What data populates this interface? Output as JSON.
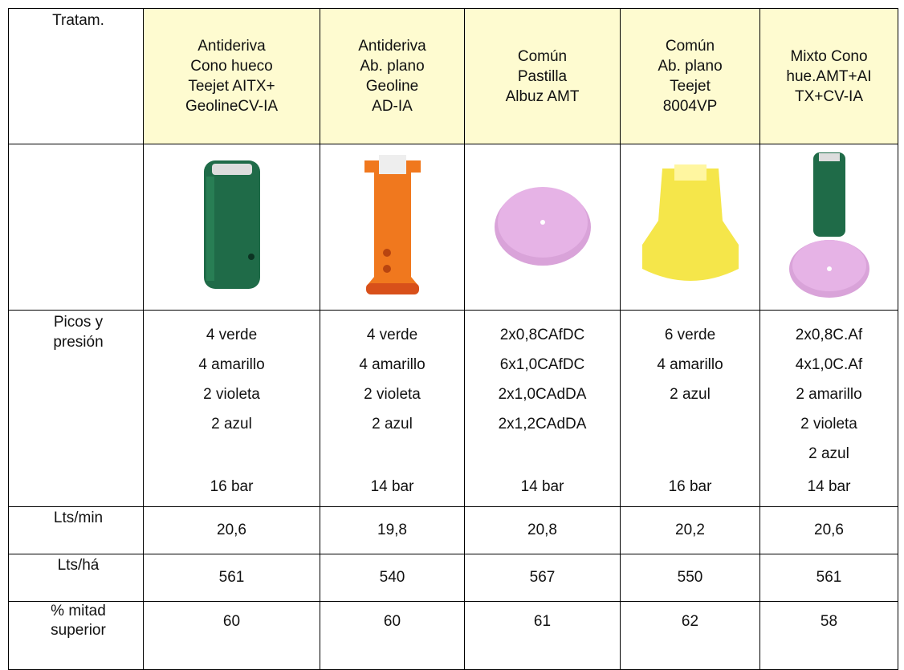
{
  "table": {
    "header": [
      [
        "Tratam."
      ],
      [
        "Antideriva",
        "Cono hueco",
        "Teejet AITX+",
        "GeolineCV-IA"
      ],
      [
        "Antideriva",
        "Ab. plano",
        "Geoline",
        "AD-IA"
      ],
      [
        "Común",
        "Pastilla",
        "Albuz AMT"
      ],
      [
        "Común",
        "Ab. plano",
        "Teejet",
        "8004VP"
      ],
      [
        "Mixto Cono",
        "hue.AMT+AI",
        "TX+CV-IA"
      ]
    ],
    "picos": {
      "label": [
        "Picos y",
        "presión"
      ],
      "cells": [
        {
          "nozzles": [
            "4 verde",
            "4 amarillo",
            "2 violeta",
            "2 azul"
          ],
          "pressure": "16 bar"
        },
        {
          "nozzles": [
            "4 verde",
            "4 amarillo",
            "2 violeta",
            "2 azul"
          ],
          "pressure": "14 bar"
        },
        {
          "nozzles": [
            "2x0,8CAfDC",
            "6x1,0CAfDC",
            "2x1,0CAdDA",
            "2x1,2CAdDA"
          ],
          "pressure": "14 bar"
        },
        {
          "nozzles": [
            "6 verde",
            "4 amarillo",
            "2 azul"
          ],
          "pressure": "16 bar"
        },
        {
          "nozzles": [
            "2x0,8C.Af",
            "4x1,0C.Af",
            "2 amarillo",
            "2 violeta",
            "2 azul"
          ],
          "pressure": "14 bar"
        }
      ]
    },
    "rows": [
      [
        "Lts/min",
        "20,6",
        "19,8",
        "20,8",
        "20,2",
        "20,6"
      ],
      [
        "Lts/há",
        "561",
        "540",
        "567",
        "550",
        "561"
      ],
      [
        [
          "% mitad",
          "superior"
        ],
        "60",
        "60",
        "61",
        "62",
        "58"
      ]
    ]
  }
}
